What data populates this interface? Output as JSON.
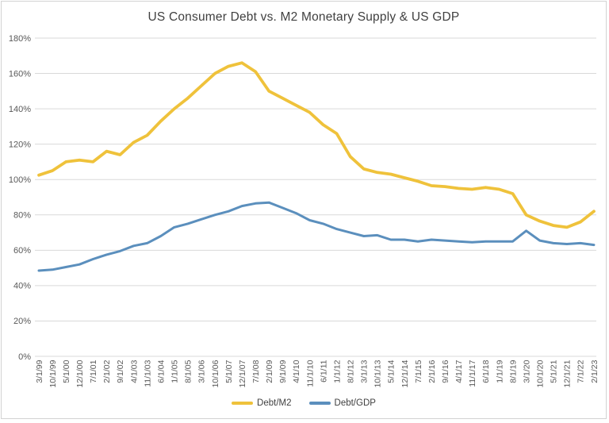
{
  "chart_data": {
    "type": "line",
    "title": "US Consumer Debt vs. M2 Monetary Supply & US GDP",
    "xlabel": "",
    "ylabel": "",
    "ylim": [
      0,
      180
    ],
    "ytick_step": 20,
    "ytick_format": "percent",
    "ytick_labels": [
      "0%",
      "20%",
      "40%",
      "60%",
      "80%",
      "100%",
      "120%",
      "140%",
      "160%",
      "180%"
    ],
    "grid": true,
    "legend_position": "bottom",
    "categories": [
      "3/1/99",
      "10/1/99",
      "5/1/00",
      "12/1/00",
      "7/1/01",
      "2/1/02",
      "9/1/02",
      "4/1/03",
      "11/1/03",
      "6/1/04",
      "1/1/05",
      "8/1/05",
      "3/1/06",
      "10/1/06",
      "5/1/07",
      "12/1/07",
      "7/1/08",
      "2/1/09",
      "9/1/09",
      "4/1/10",
      "11/1/10",
      "6/1/11",
      "1/1/12",
      "8/1/12",
      "3/1/13",
      "10/1/13",
      "5/1/14",
      "12/1/14",
      "7/1/15",
      "2/1/16",
      "9/1/16",
      "4/1/17",
      "11/1/17",
      "6/1/18",
      "1/1/19",
      "8/1/19",
      "3/1/20",
      "10/1/20",
      "5/1/21",
      "12/1/21",
      "7/1/22",
      "2/1/23"
    ],
    "series": [
      {
        "name": "Debt/M2",
        "color": "#EFC23B",
        "values": [
          102.5,
          105,
          110,
          111,
          110,
          116,
          114,
          121,
          125,
          133,
          140,
          146,
          153,
          160,
          164,
          166,
          161,
          150,
          146,
          142,
          138,
          131,
          126,
          113,
          106,
          104,
          103,
          101,
          99,
          96.5,
          96,
          95,
          94.5,
          95.5,
          94.5,
          92,
          80,
          76.5,
          74,
          73,
          76,
          82
        ]
      },
      {
        "name": "Debt/GDP",
        "color": "#5B8FBD",
        "values": [
          48.5,
          49,
          50.5,
          52,
          55,
          57.5,
          59.5,
          62.5,
          64,
          68,
          73,
          75,
          77.5,
          80,
          82,
          85,
          86.5,
          87,
          84,
          81,
          77,
          75,
          72,
          70,
          68,
          68.5,
          66,
          66,
          65,
          66,
          65.5,
          65,
          64.5,
          65,
          65,
          65,
          71,
          65.5,
          64,
          63.5,
          64,
          63
        ]
      }
    ],
    "colors": {
      "grid": "#D9D9D9",
      "axis_text": "#595959",
      "title_text": "#404040",
      "background": "#FFFFFF"
    }
  }
}
